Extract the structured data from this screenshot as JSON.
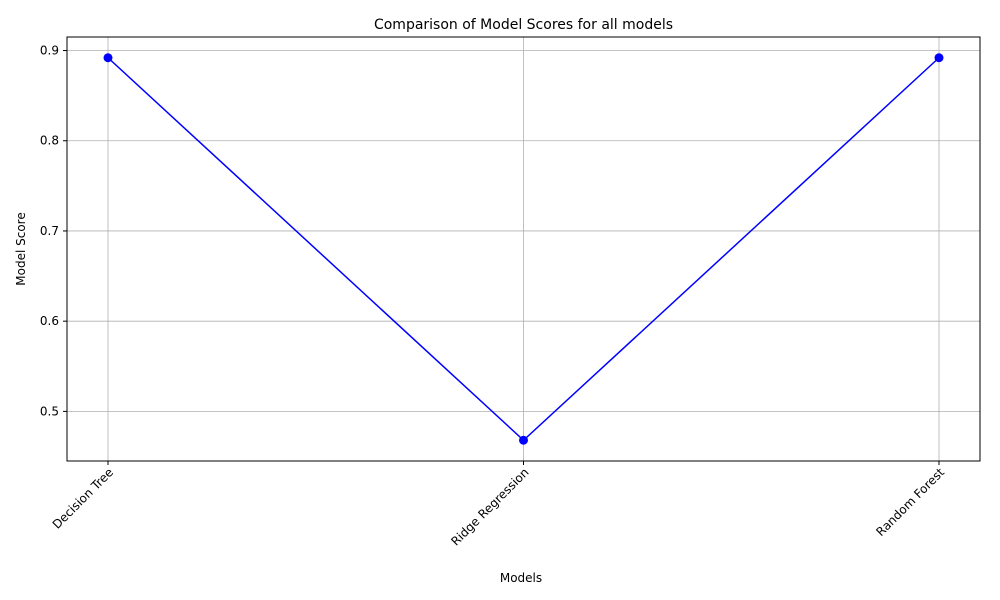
{
  "chart_data": {
    "type": "line",
    "title": "Comparison of Model Scores for all models",
    "xlabel": "Models",
    "ylabel": "Model Score",
    "categories": [
      "Decision Tree",
      "Ridge Regression",
      "Random Forest"
    ],
    "series": [
      {
        "values": [
          0.892,
          0.468,
          0.892
        ],
        "color": "#0000ff",
        "marker": "circle"
      }
    ],
    "ylim": [
      0.445,
      0.915
    ],
    "yticks": [
      0.5,
      0.6,
      0.7,
      0.8,
      0.9
    ],
    "ytick_labels": [
      "0.5",
      "0.6",
      "0.7",
      "0.8",
      "0.9"
    ],
    "xtick_rotation": 45,
    "grid": true,
    "legend": "none"
  }
}
